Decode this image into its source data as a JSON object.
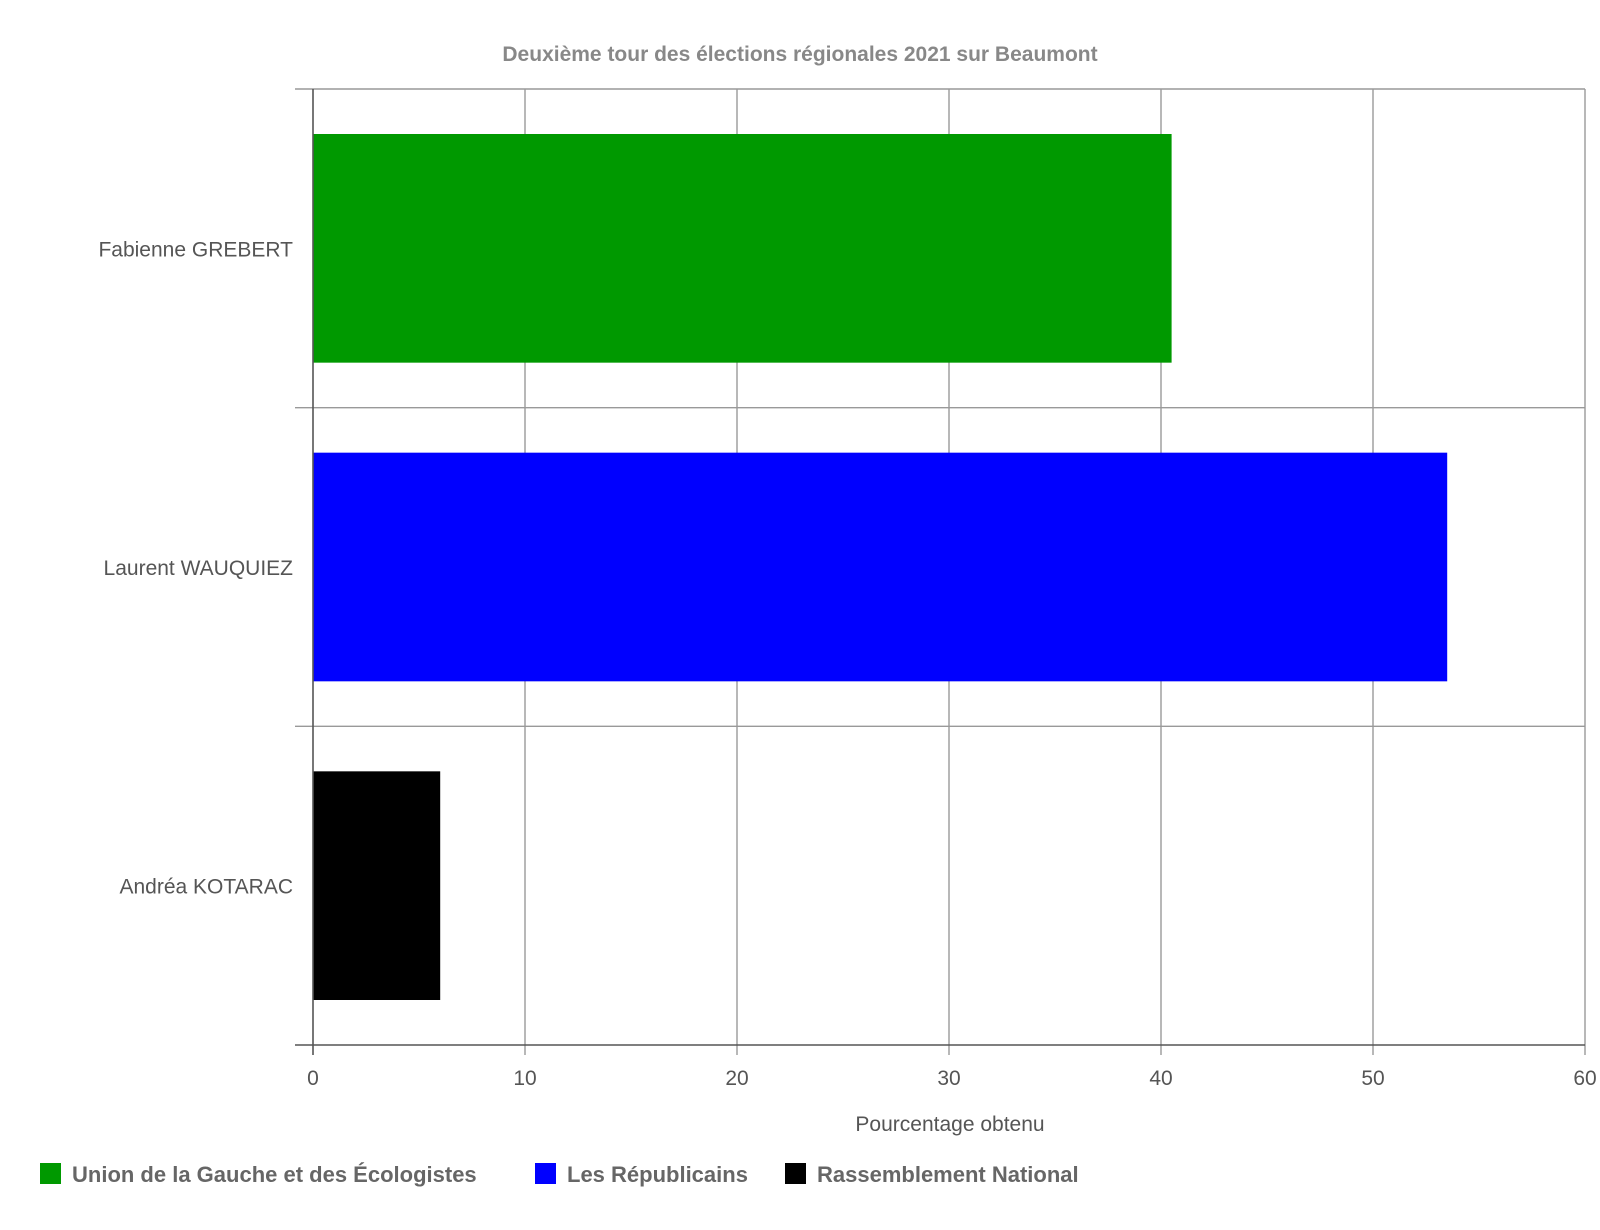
{
  "chart_data": {
    "type": "bar",
    "orientation": "horizontal",
    "title": "Deuxième tour des élections régionales 2021 sur Beaumont",
    "xlabel": "Pourcentage obtenu",
    "ylabel": "",
    "xlim": [
      0,
      60
    ],
    "xticks": [
      0,
      10,
      20,
      30,
      40,
      50,
      60
    ],
    "grid": true,
    "legend_position": "bottom-left",
    "categories": [
      "Fabienne GREBERT",
      "Laurent WAUQUIEZ",
      "Andréa KOTARAC"
    ],
    "values": [
      40.5,
      53.5,
      6.0
    ],
    "colors": [
      "#009900",
      "#0000ff",
      "#000000"
    ],
    "legend": [
      {
        "label": "Union de la Gauche et des Écologistes",
        "color": "#009900"
      },
      {
        "label": "Les Républicains",
        "color": "#0000ff"
      },
      {
        "label": "Rassemblement National",
        "color": "#000000"
      }
    ]
  }
}
